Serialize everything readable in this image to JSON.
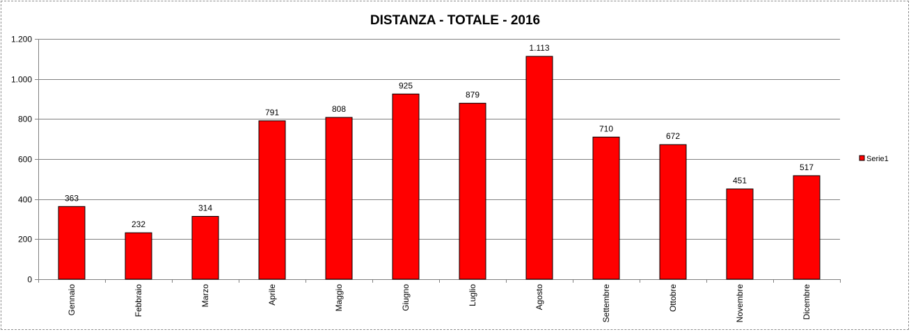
{
  "chart_data": {
    "type": "bar",
    "title": "DISTANZA - TOTALE - 2016",
    "xlabel": "",
    "ylabel": "",
    "categories": [
      "Gennaio",
      "Febbraio",
      "Marzo",
      "Aprile",
      "Maggio",
      "Giugno",
      "Luglio",
      "Agosto",
      "Settembre",
      "Ottobre",
      "Novembre",
      "Dicembre"
    ],
    "series": [
      {
        "name": "Serie1",
        "values": [
          363,
          232,
          314,
          791,
          808,
          925,
          879,
          1113,
          710,
          672,
          451,
          517
        ],
        "data_labels": [
          "363",
          "232",
          "314",
          "791",
          "808",
          "925",
          "879",
          "1.113",
          "710",
          "672",
          "451",
          "517"
        ],
        "color": "#ff0000"
      }
    ],
    "ylim": [
      0,
      1200
    ],
    "yticks": [
      0,
      200,
      400,
      600,
      800,
      1000,
      1200
    ],
    "ytick_labels": [
      "0",
      "200",
      "400",
      "600",
      "800",
      "1.000",
      "1.200"
    ],
    "grid": true,
    "legend_position": "right"
  }
}
